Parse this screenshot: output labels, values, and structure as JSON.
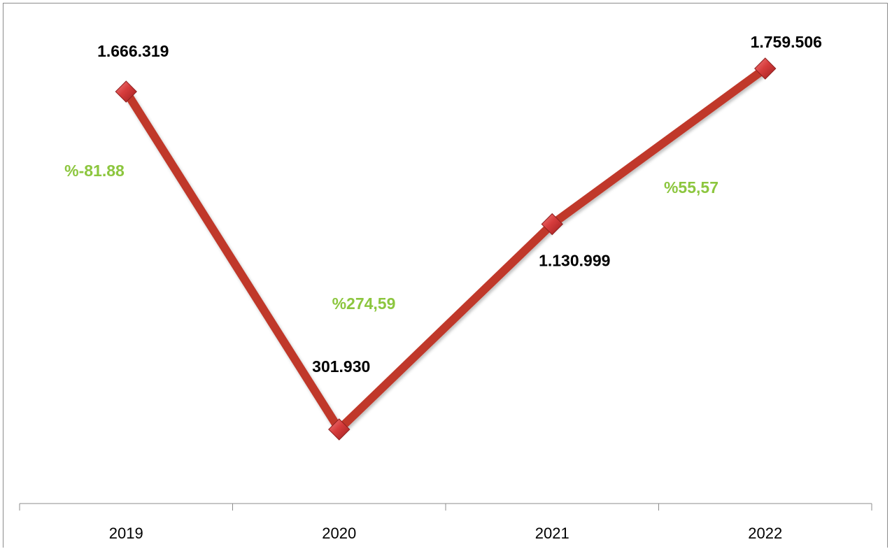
{
  "chart_data": {
    "type": "line",
    "categories": [
      "2019",
      "2020",
      "2021",
      "2022"
    ],
    "series": [
      {
        "values": [
          1666319,
          301930,
          1130999,
          1759506
        ],
        "data_labels": [
          "1.666.319",
          "301.930",
          "1.130.999",
          "1.759.506"
        ]
      }
    ],
    "annotations": [
      "%-81.88",
      "%274,59",
      "%55,57"
    ],
    "ylim": [
      0,
      2000000
    ],
    "grid": false,
    "legend": "none",
    "colors": {
      "line": "#c0392b",
      "marker": "#d63c3c",
      "marker_edge": "#8e1f1f",
      "annotation": "#8cc63e",
      "axis": "#8c8c8c"
    }
  }
}
